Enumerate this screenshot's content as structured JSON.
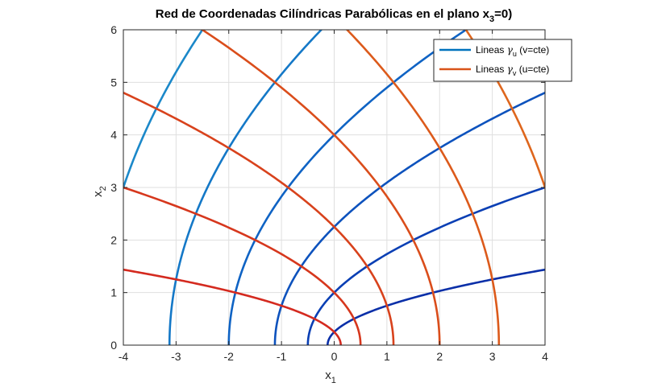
{
  "chart_data": {
    "type": "line",
    "title": "Red de Coordenadas Cilíndricas Parabólicas en el plano x",
    "title_sub": "3",
    "title_tail": "=0)",
    "xlabel": "x",
    "xlabel_sub": "1",
    "ylabel": "x",
    "ylabel_sub": "2",
    "xlim": [
      -4,
      4
    ],
    "ylim": [
      0,
      6
    ],
    "xticks": [
      "-4",
      "-3",
      "-2",
      "-1",
      "0",
      "1",
      "2",
      "3",
      "4"
    ],
    "yticks": [
      "0",
      "1",
      "2",
      "3",
      "4",
      "5",
      "6"
    ],
    "grid": true,
    "legend_position": "top-right",
    "legend": [
      {
        "label": "Lineas ",
        "greek": "γ",
        "sub": "u",
        "tail": " (v=cte)",
        "color": "#0072BD"
      },
      {
        "label": "Lineas ",
        "greek": "γ",
        "sub": "v",
        "tail": " (u=cte)",
        "color": "#D95319"
      }
    ],
    "series": [
      {
        "family": "u",
        "v": 0.5,
        "color": "#0a2fa8",
        "x_range": [
          -0.125,
          4
        ],
        "y_range": [
          0,
          0.5657
        ]
      },
      {
        "family": "u",
        "v": 1.0,
        "color": "#0a3fb4",
        "x_range": [
          -0.5,
          4
        ],
        "y_range": [
          0,
          1.9
        ]
      },
      {
        "family": "u",
        "v": 1.5,
        "color": "#0d52bd",
        "x_range": [
          -1.125,
          4
        ],
        "y_range": [
          0,
          3.35
        ]
      },
      {
        "family": "u",
        "v": 2.0,
        "color": "#0f63c4",
        "x_range": [
          -2,
          4
        ],
        "y_range": [
          0,
          4.73
        ]
      },
      {
        "family": "u",
        "v": 2.5,
        "color": "#1478c7",
        "x_range": [
          -3.125,
          4
        ],
        "y_range": [
          0,
          6
        ]
      },
      {
        "family": "u",
        "v": 3.0,
        "color": "#1b88c9",
        "x_range": [
          -4.5,
          4
        ],
        "y_range": [
          0,
          6
        ]
      },
      {
        "family": "u",
        "v": 3.5,
        "color": "#2198c8",
        "x_range": [
          -6.125,
          4
        ],
        "y_range": [
          0,
          6
        ]
      },
      {
        "family": "v",
        "u": 0.5,
        "color": "#d42a1f",
        "x_range": [
          -4,
          0.125
        ],
        "y_range": [
          0,
          0.5657
        ]
      },
      {
        "family": "v",
        "u": 1.0,
        "color": "#d6371d",
        "x_range": [
          -4,
          0.5
        ],
        "y_range": [
          0,
          1.9
        ]
      },
      {
        "family": "v",
        "u": 1.5,
        "color": "#d8421c",
        "x_range": [
          -4,
          1.125
        ],
        "y_range": [
          0,
          3.35
        ]
      },
      {
        "family": "v",
        "u": 2.0,
        "color": "#da4d1b",
        "x_range": [
          -4,
          2
        ],
        "y_range": [
          0,
          4.73
        ]
      },
      {
        "family": "v",
        "u": 2.5,
        "color": "#dc5a1b",
        "x_range": [
          -4,
          3.125
        ],
        "y_range": [
          0,
          6
        ]
      },
      {
        "family": "v",
        "u": 3.0,
        "color": "#de661d",
        "x_range": [
          -4,
          4.5
        ],
        "y_range": [
          0,
          6
        ]
      },
      {
        "family": "v",
        "u": 3.5,
        "color": "#e0731f",
        "x_range": [
          -4,
          6.125
        ],
        "y_range": [
          0,
          6
        ]
      }
    ]
  }
}
